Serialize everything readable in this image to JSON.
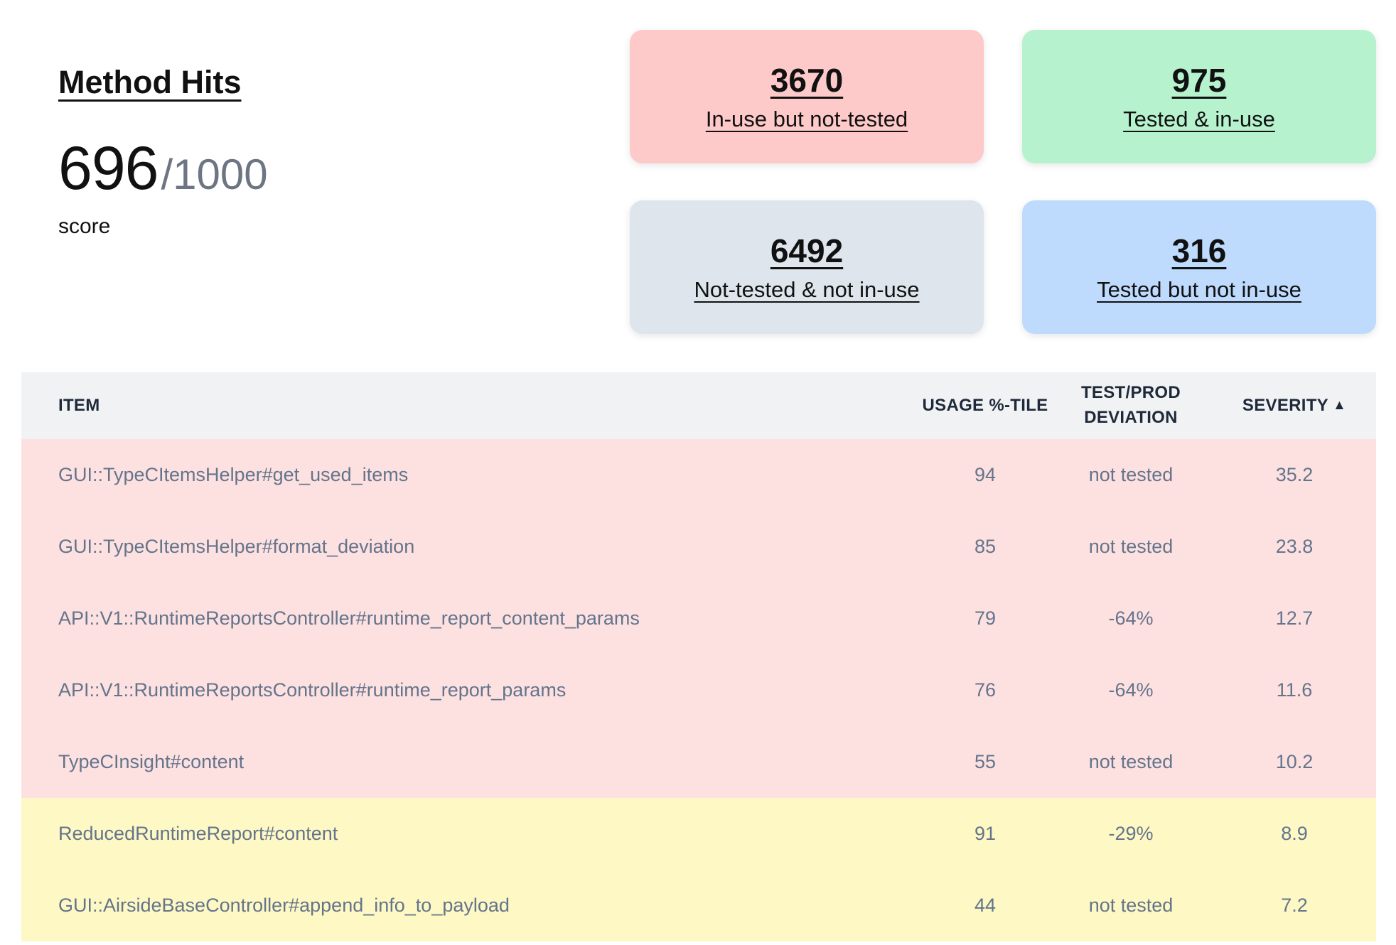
{
  "score_panel": {
    "title": "Method Hits",
    "value": "696",
    "total": "/1000",
    "caption": "score"
  },
  "summary_cards": [
    {
      "value": "3670",
      "label": "In-use but not-tested",
      "color": "#fdc9c9"
    },
    {
      "value": "975",
      "label": "Tested & in-use",
      "color": "#b7f2cf"
    },
    {
      "value": "6492",
      "label": "Not-tested & not in-use",
      "color": "#dfe5ec"
    },
    {
      "value": "316",
      "label": "Tested but not in-use",
      "color": "#bedafc"
    }
  ],
  "table": {
    "columns": [
      {
        "label": "ITEM"
      },
      {
        "label": "USAGE %-TILE"
      },
      {
        "label": "TEST/PROD DEVIATION"
      },
      {
        "label": "SEVERITY",
        "sort_indicator": "▲"
      }
    ],
    "row_colors": {
      "red": "#fde1e1",
      "yellow": "#fdf8c4"
    },
    "rows": [
      {
        "item": "GUI::TypeCItemsHelper#get_used_items",
        "usage_percentile": "94",
        "deviation": "not tested",
        "severity": "35.2",
        "highlight": "red"
      },
      {
        "item": "GUI::TypeCItemsHelper#format_deviation",
        "usage_percentile": "85",
        "deviation": "not tested",
        "severity": "23.8",
        "highlight": "red"
      },
      {
        "item": "API::V1::RuntimeReportsController#runtime_report_content_params",
        "usage_percentile": "79",
        "deviation": "-64%",
        "severity": "12.7",
        "highlight": "red"
      },
      {
        "item": "API::V1::RuntimeReportsController#runtime_report_params",
        "usage_percentile": "76",
        "deviation": "-64%",
        "severity": "11.6",
        "highlight": "red"
      },
      {
        "item": "TypeCInsight#content",
        "usage_percentile": "55",
        "deviation": "not tested",
        "severity": "10.2",
        "highlight": "red"
      },
      {
        "item": "ReducedRuntimeReport#content",
        "usage_percentile": "91",
        "deviation": "-29%",
        "severity": "8.9",
        "highlight": "yellow"
      },
      {
        "item": "GUI::AirsideBaseController#append_info_to_payload",
        "usage_percentile": "44",
        "deviation": "not tested",
        "severity": "7.2",
        "highlight": "yellow"
      }
    ]
  }
}
